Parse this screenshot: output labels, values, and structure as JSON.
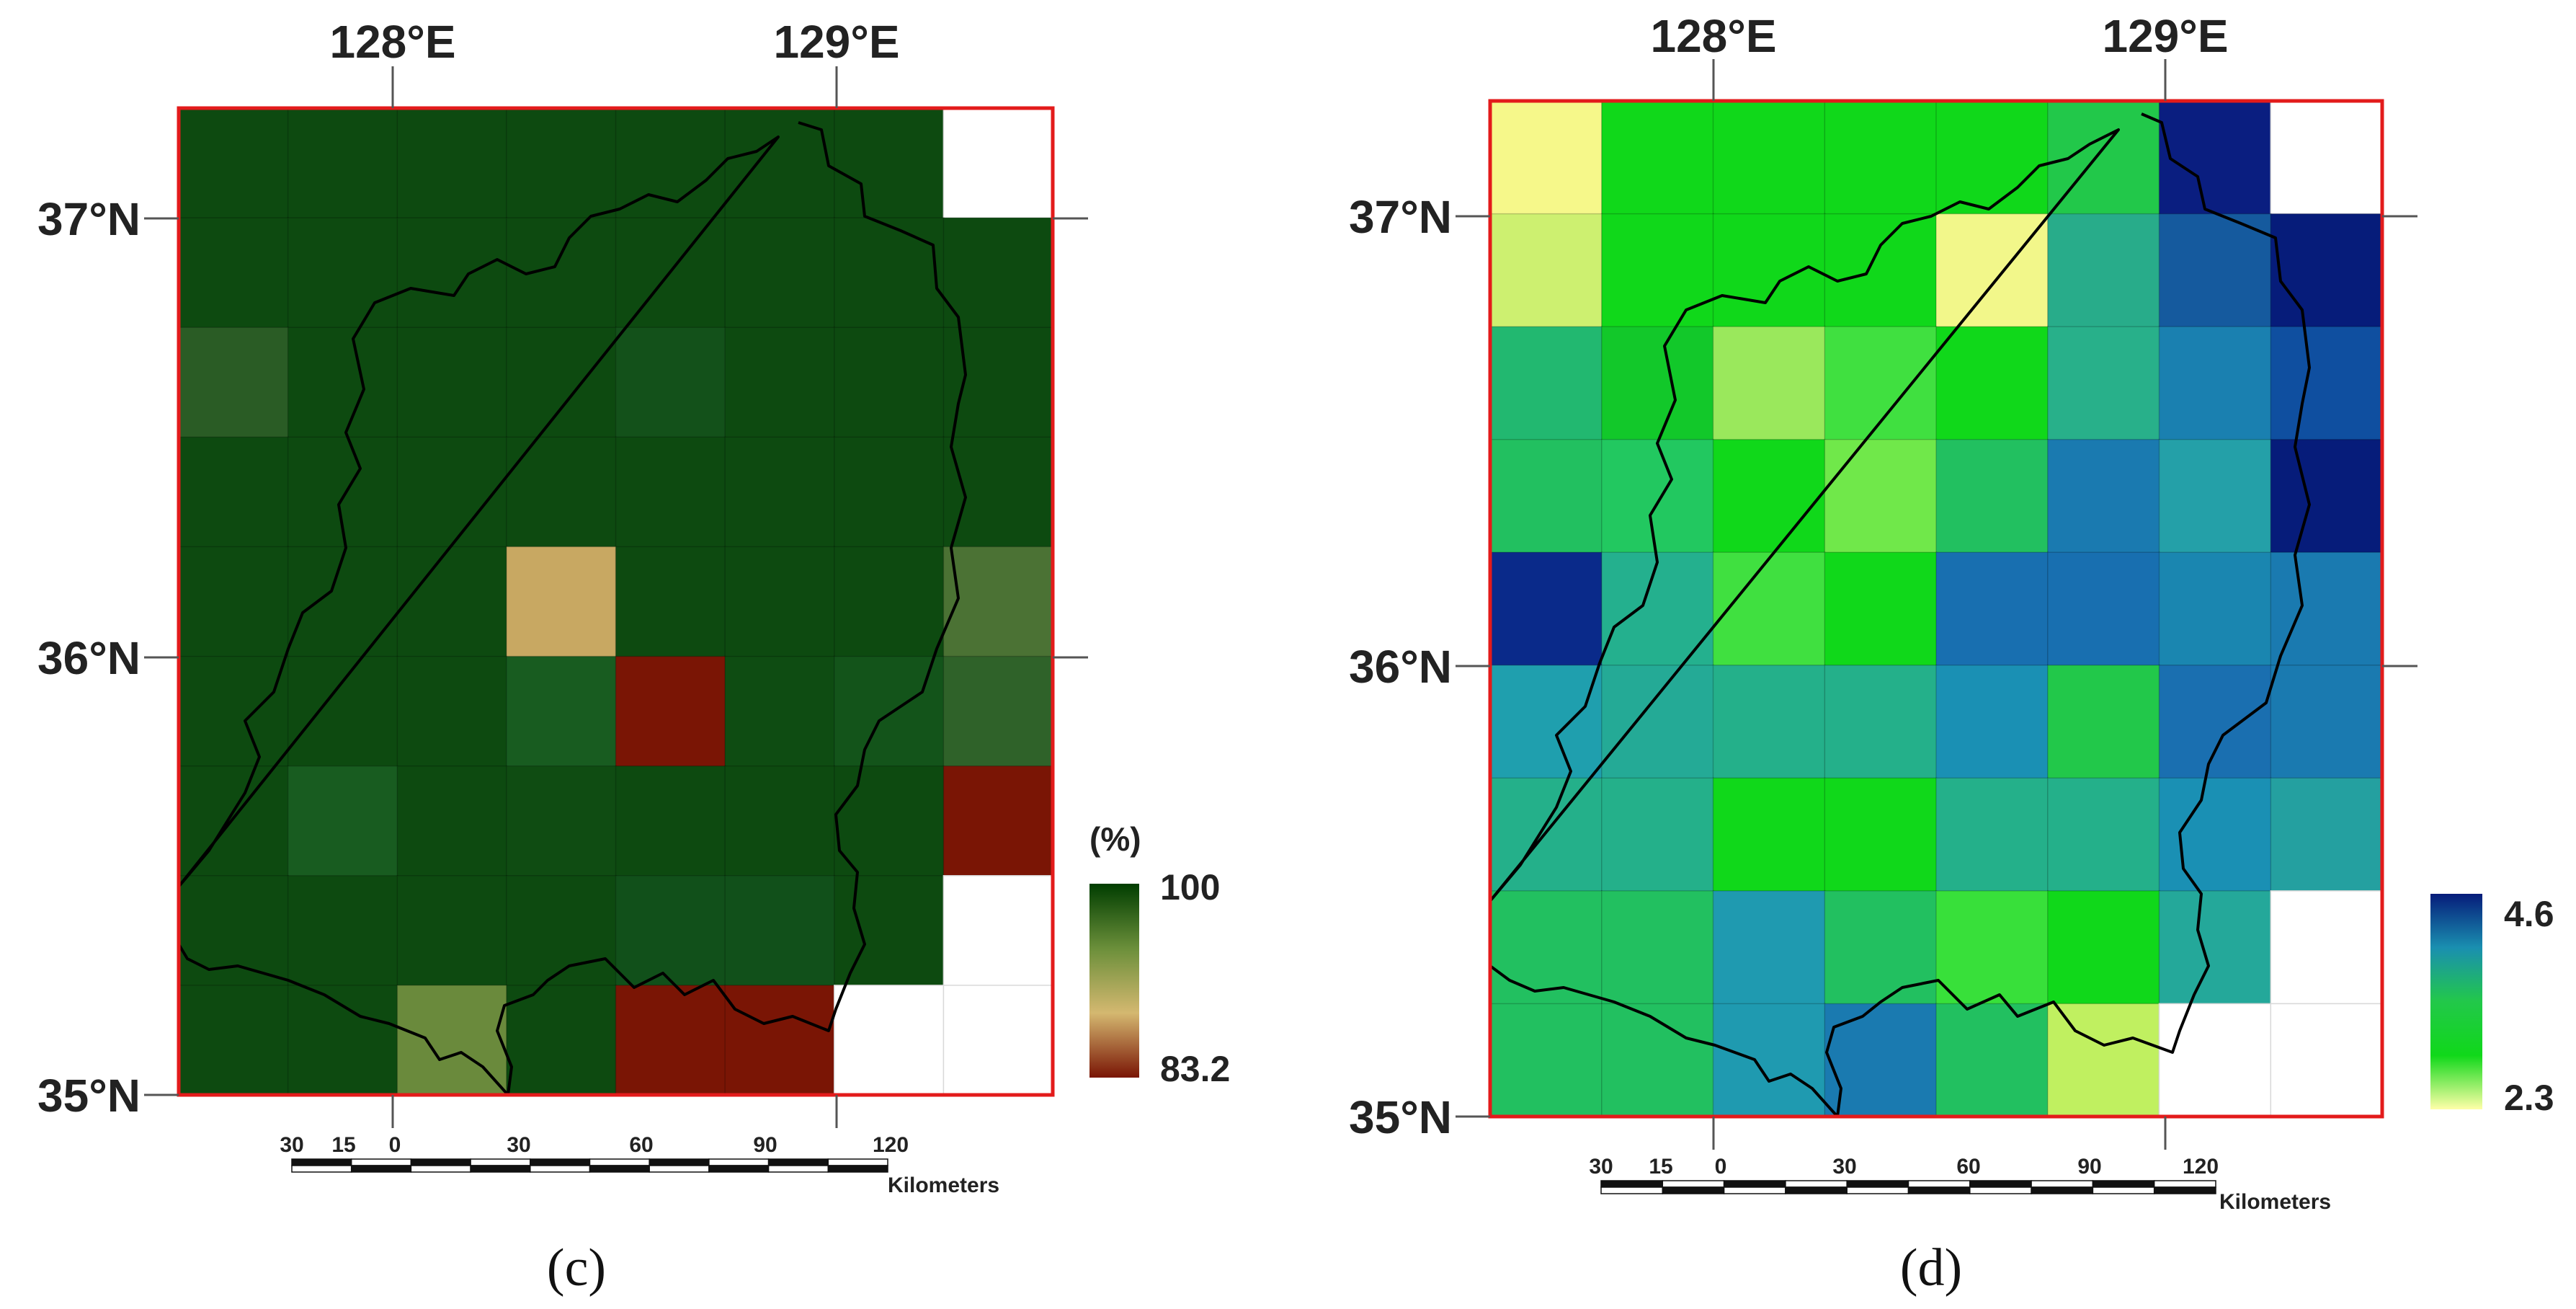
{
  "panels": [
    {
      "id": "c",
      "caption": "(c)",
      "lon_labels": [
        "128°E",
        "129°E"
      ],
      "lat_labels": [
        "37°N",
        "36°N",
        "35°N"
      ],
      "scale": {
        "ticks": [
          "30",
          "15",
          "0",
          "30",
          "60",
          "90",
          "120"
        ],
        "unit": "Kilometers"
      },
      "legend": {
        "unit": "(%)",
        "max_label": "100",
        "min_label": "83.2",
        "colors": [
          "#003d00",
          "#6b8f3a",
          "#d4b870",
          "#7a1505"
        ]
      },
      "grid_colors": [
        [
          "#0d4a10",
          "#0d4a10",
          "#0d4a10",
          "#0d4a10",
          "#0d4a10",
          "#0d4a10",
          "#0d4a10",
          "#ffffff"
        ],
        [
          "#0d4a10",
          "#0d4a10",
          "#0d4a10",
          "#0d4a10",
          "#0d4a10",
          "#0d4a10",
          "#0d4a10",
          "#0d4a10"
        ],
        [
          "#2a5c25",
          "#0d4a10",
          "#0d4a10",
          "#0d4a10",
          "#13511a",
          "#0d4a10",
          "#0d4a10",
          "#0d4a10"
        ],
        [
          "#0d4a10",
          "#0d4a10",
          "#0d4a10",
          "#0d4a10",
          "#0d4a10",
          "#0d4a10",
          "#0d4a10",
          "#0d4a10"
        ],
        [
          "#0d4a10",
          "#0d4a10",
          "#0d4a10",
          "#c8a862",
          "#0d4a10",
          "#0d4a10",
          "#0d4a10",
          "#4b7234"
        ],
        [
          "#0d4a10",
          "#0d4a10",
          "#0d4a10",
          "#185c20",
          "#7a1505",
          "#0e4c12",
          "#13541a",
          "#2f6229"
        ],
        [
          "#0d4a10",
          "#185c20",
          "#0d4a10",
          "#0f4c12",
          "#0d4a10",
          "#0d4a10",
          "#0d4a10",
          "#7a1505"
        ],
        [
          "#0d4a10",
          "#0d4a10",
          "#0d4a10",
          "#0d4a10",
          "#11501a",
          "#11501a",
          "#0d4a10",
          "#ffffff"
        ],
        [
          "#0d4a10",
          "#0d4a10",
          "#6a8a3c",
          "#0d4a10",
          "#7a1505",
          "#7a1505",
          "#ffffff",
          "#ffffff"
        ]
      ]
    },
    {
      "id": "d",
      "caption": "(d)",
      "lon_labels": [
        "128°E",
        "129°E"
      ],
      "lat_labels": [
        "37°N",
        "36°N",
        "35°N"
      ],
      "scale": {
        "ticks": [
          "30",
          "15",
          "0",
          "30",
          "60",
          "90",
          "120"
        ],
        "unit": "Kilometers"
      },
      "legend": {
        "unit": "",
        "max_label": "4.6",
        "min_label": "2.3",
        "colors": [
          "#061c7a",
          "#1a8fb0",
          "#22c84a",
          "#10d81a",
          "#ffffa8"
        ]
      },
      "grid_colors": [
        [
          "#f6f88a",
          "#10d81a",
          "#10d81a",
          "#10d81a",
          "#10d81a",
          "#22c84a",
          "#0a1e80",
          "#ffffff"
        ],
        [
          "#cdf070",
          "#10d81a",
          "#10d81a",
          "#10d81a",
          "#f2f78a",
          "#28ac8a",
          "#155a9e",
          "#061c7a"
        ],
        [
          "#22b870",
          "#12c82a",
          "#9ae85c",
          "#40e040",
          "#10d81a",
          "#28b08a",
          "#1a80b0",
          "#0f4fa0"
        ],
        [
          "#22c060",
          "#22c860",
          "#10d81a",
          "#70e84a",
          "#22c060",
          "#1a7ab0",
          "#24a0a8",
          "#061c7a"
        ],
        [
          "#0a2a8a",
          "#24b08e",
          "#40e040",
          "#10d81a",
          "#186fb0",
          "#186fb0",
          "#1a86b0",
          "#1a7ab0"
        ],
        [
          "#1f9fae",
          "#24aa96",
          "#24b08a",
          "#24b08a",
          "#1a90b4",
          "#22c84a",
          "#1a6fb0",
          "#1a7ab0"
        ],
        [
          "#24b08a",
          "#24b08a",
          "#10d81a",
          "#10d81a",
          "#24b08a",
          "#24b08a",
          "#1a90b4",
          "#24a0a0"
        ],
        [
          "#22c060",
          "#22c060",
          "#1f9ab0",
          "#22c060",
          "#38e03a",
          "#10d81a",
          "#24a89a",
          "#ffffff"
        ],
        [
          "#22c060",
          "#22c060",
          "#1f9ab0",
          "#1a7ab0",
          "#22c060",
          "#c0f060",
          "#ffffff",
          "#ffffff"
        ]
      ]
    }
  ]
}
